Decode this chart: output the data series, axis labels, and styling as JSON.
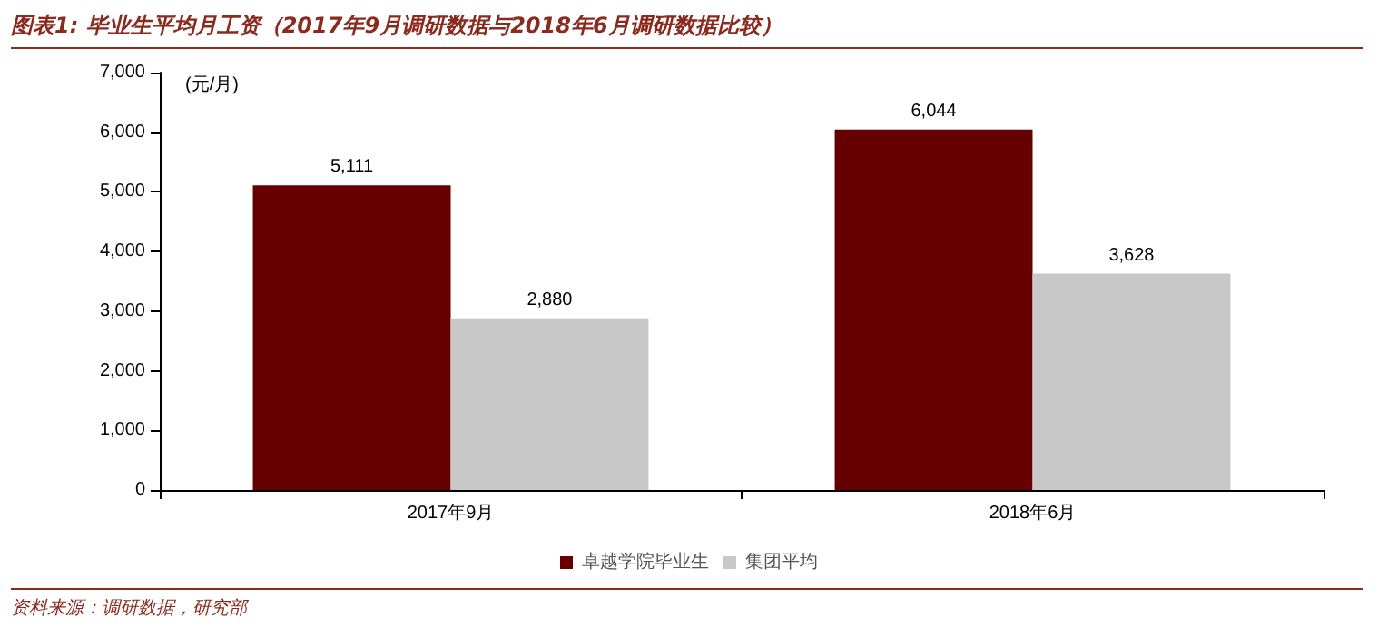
{
  "chart_data": {
    "type": "bar",
    "title": "图表1: 毕业生平均月工资（2017年9月调研数据与2018年6月调研数据比较）",
    "ylabel": "(元/月)",
    "categories": [
      "2017年9月",
      "2018年6月"
    ],
    "series": [
      {
        "name": "卓越学院毕业生",
        "color": "#660000",
        "values": [
          5111,
          6044
        ]
      },
      {
        "name": "集团平均",
        "color": "#c8c8c8",
        "values": [
          2880,
          3628
        ]
      }
    ],
    "ylim": [
      0,
      7000
    ],
    "yticks": [
      {
        "value": 0,
        "label": "0"
      },
      {
        "value": 1000,
        "label": "1,000"
      },
      {
        "value": 2000,
        "label": "2,000"
      },
      {
        "value": 3000,
        "label": "3,000"
      },
      {
        "value": 4000,
        "label": "4,000"
      },
      {
        "value": 5000,
        "label": "5,000"
      },
      {
        "value": 6000,
        "label": "6,000"
      },
      {
        "value": 7000,
        "label": "7,000"
      }
    ],
    "value_labels": [
      [
        "5,111",
        "6,044"
      ],
      [
        "2,880",
        "3,628"
      ]
    ],
    "grid": false,
    "legend": "bottom",
    "annotations": [
      "资料来源：调研数据，研究部"
    ]
  }
}
